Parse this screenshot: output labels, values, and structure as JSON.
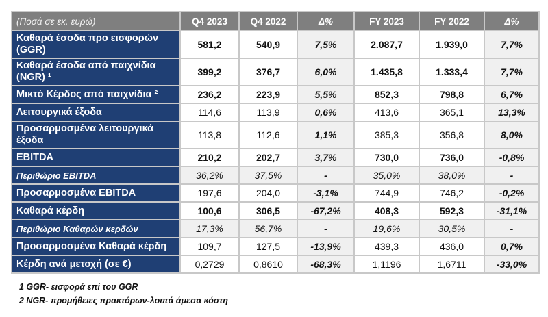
{
  "table": {
    "headers": [
      "(Ποσά σε εκ. ευρώ)",
      "Q4 2023",
      "Q4 2022",
      "Δ%",
      "FY 2023",
      "FY 2022",
      "Δ%"
    ],
    "rows": [
      {
        "label": "Καθαρά έσοδα προ εισφορών (GGR)",
        "values": [
          "581,2",
          "540,9",
          "7,5%",
          "2.087,7",
          "1.939,0",
          "7,7%"
        ]
      },
      {
        "label": "Καθαρά έσοδα από παιχνίδια (NGR) ¹",
        "values": [
          "399,2",
          "376,7",
          "6,0%",
          "1.435,8",
          "1.333,4",
          "7,7%"
        ]
      },
      {
        "label": "Μικτό Κέρδος από παιχνίδια ²",
        "values": [
          "236,2",
          "223,9",
          "5,5%",
          "852,3",
          "798,8",
          "6,7%"
        ]
      },
      {
        "label": "Λειτουργικά έξοδα",
        "values": [
          "114,6",
          "113,9",
          "0,6%",
          "413,6",
          "365,1",
          "13,3%"
        ]
      },
      {
        "label": "Προσαρμοσμένα λειτουργικά έξοδα",
        "values": [
          "113,8",
          "112,6",
          "1,1%",
          "385,3",
          "356,8",
          "8,0%"
        ]
      },
      {
        "label": "EBITDA",
        "values": [
          "210,2",
          "202,7",
          "3,7%",
          "730,0",
          "736,0",
          "-0,8%"
        ]
      },
      {
        "label": "Περιθώριο EBITDA",
        "values": [
          "36,2%",
          "37,5%",
          "-",
          "35,0%",
          "38,0%",
          "-"
        ]
      },
      {
        "label": "Προσαρμοσμένα EBITDA",
        "values": [
          "197,6",
          "204,0",
          "-3,1%",
          "744,9",
          "746,2",
          "-0,2%"
        ]
      },
      {
        "label": "Καθαρά κέρδη",
        "values": [
          "100,6",
          "306,5",
          "-67,2%",
          "408,3",
          "592,3",
          "-31,1%"
        ]
      },
      {
        "label": "Περιθώριο Καθαρών κερδών",
        "values": [
          "17,3%",
          "56,7%",
          "-",
          "19,6%",
          "30,5%",
          "-"
        ]
      },
      {
        "label": "Προσαρμοσμένα Καθαρά κέρδη",
        "values": [
          "109,7",
          "127,5",
          "-13,9%",
          "439,3",
          "436,0",
          "0,7%"
        ]
      },
      {
        "label": "Κέρδη ανά μετοχή (σε €)",
        "values": [
          "0,2729",
          "0,8610",
          "-68,3%",
          "1,1196",
          "1,6711",
          "-33,0%"
        ]
      }
    ]
  },
  "footnotes": [
    "1 GGR- εισφορά επί του GGR",
    "2 NGR- προμήθειες πρακτόρων-λοιπά άμεσα κόστη"
  ],
  "colors": {
    "label_bg": "#1f3f74",
    "header_bg": "#7f7f7f",
    "delta_bg": "#f0f0f0"
  }
}
